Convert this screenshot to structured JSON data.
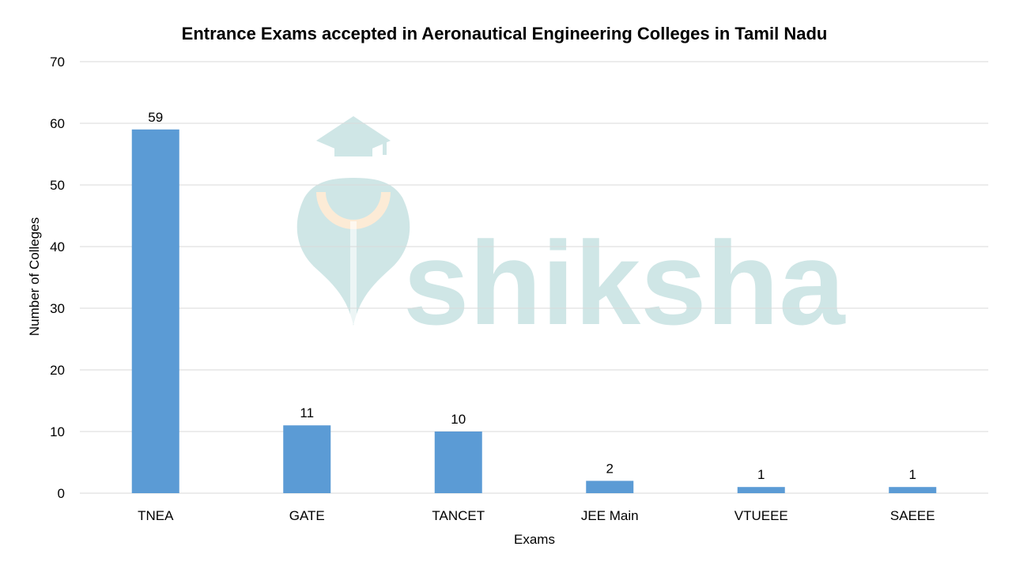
{
  "chart_data": {
    "type": "bar",
    "title": "Entrance Exams accepted in Aeronautical Engineering Colleges in Tamil Nadu",
    "xlabel": "Exams",
    "ylabel": "Number of Colleges",
    "categories": [
      "TNEA",
      "GATE",
      "TANCET",
      "JEE Main",
      "VTUEEE",
      "SAEEE"
    ],
    "values": [
      59,
      11,
      10,
      2,
      1,
      1
    ],
    "ylim": [
      0,
      70
    ],
    "yticks": [
      0,
      10,
      20,
      30,
      40,
      50,
      60,
      70
    ],
    "grid": true,
    "data_labels": true,
    "bar_color": "#5b9bd5",
    "legend": "none"
  },
  "watermark": {
    "text": "shiksha",
    "color": "#cfe6e6",
    "accent_color": "#fcebd6"
  }
}
